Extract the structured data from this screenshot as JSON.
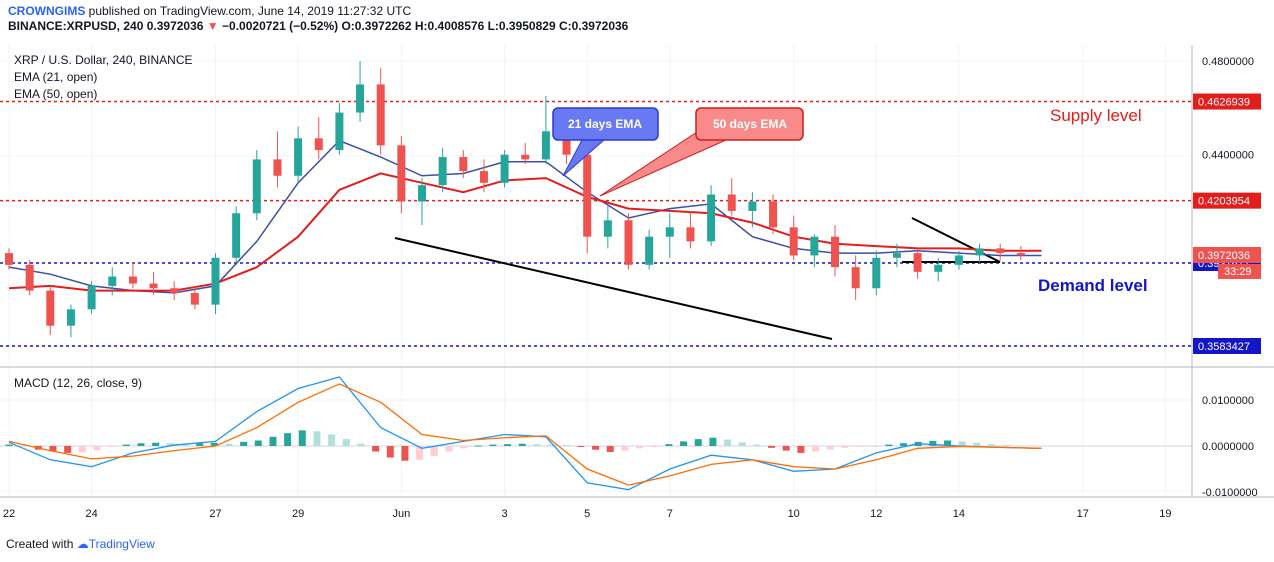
{
  "header": {
    "publisher": "CROWNGIMS",
    "published_text": "published on TradingView.com, June 14, 2019 11:27:32 UTC",
    "symbol_line": "BINANCE:XRPUSD, 240",
    "last": "0.3972036",
    "change": "−0.0020721 (−0.52%)",
    "ohlc": "O:0.3972262 H:0.4008576 L:0.3950829 C:0.3972036"
  },
  "legend": {
    "symbol": "XRP / U.S. Dollar, 240, BINANCE",
    "ema21": "EMA (21, open)",
    "ema50": "EMA (50, open)"
  },
  "macd_title": "MACD (12, 26, close, 9)",
  "footer": {
    "created": "Created with",
    "brand": "TradingView"
  },
  "colors": {
    "up": "#26a69a",
    "down": "#ef5350",
    "ema21": "#3b4fa8",
    "ema50": "#e31c1c",
    "supply": "#e31c1c",
    "demand": "#1515c8",
    "trendline": "#000000",
    "macd_line": "#2196f3",
    "signal_line": "#ff6d00"
  },
  "chart_data": [
    {
      "type": "candlestick",
      "y_axis": {
        "min": 0.35,
        "max": 0.485,
        "ticks": [
          "0.4800000",
          "0.4400000",
          "0.3972036",
          "0.3937677",
          "0.3583427"
        ]
      },
      "x_ticks": [
        "22",
        "24",
        "27",
        "29",
        "Jun",
        "3",
        "5",
        "7",
        "10",
        "12",
        "14",
        "17",
        "19"
      ],
      "levels": [
        {
          "name": "Supply level",
          "price": 0.4626939,
          "label": "0.4626939",
          "color": "#e31c1c"
        },
        {
          "name": "",
          "price": 0.4203954,
          "label": "0.4203954",
          "color": "#e31c1c"
        },
        {
          "name": "Demand level",
          "price": 0.3937677,
          "label": "0.3937677",
          "color": "#1515c8"
        },
        {
          "name": "",
          "price": 0.3583427,
          "label": "0.3583427",
          "color": "#1515c8"
        }
      ],
      "current_price": {
        "label": "0.3972036",
        "countdown": "33:29"
      },
      "annotations": [
        "21 days EMA",
        "50 days EMA",
        "Supply level",
        "Demand level"
      ],
      "series": [
        {
          "name": "EMA (21, open)",
          "x_days": [
            22,
            23,
            24,
            25,
            26,
            27,
            28,
            29,
            30,
            31,
            32,
            33,
            34,
            35,
            36,
            37,
            38,
            39,
            40,
            41,
            42,
            43,
            44,
            45,
            46,
            47
          ],
          "values": [
            0.392,
            0.389,
            0.384,
            0.382,
            0.381,
            0.384,
            0.403,
            0.428,
            0.446,
            0.439,
            0.431,
            0.432,
            0.437,
            0.437,
            0.424,
            0.413,
            0.417,
            0.419,
            0.405,
            0.4,
            0.398,
            0.398,
            0.399,
            0.398,
            0.397,
            0.397
          ]
        },
        {
          "name": "EMA (50, open)",
          "x_days": [
            22,
            23,
            24,
            25,
            26,
            27,
            28,
            29,
            30,
            31,
            32,
            33,
            34,
            35,
            36,
            37,
            38,
            39,
            40,
            41,
            42,
            43,
            44,
            45,
            46,
            47
          ],
          "values": [
            0.383,
            0.384,
            0.382,
            0.382,
            0.382,
            0.385,
            0.392,
            0.405,
            0.425,
            0.432,
            0.428,
            0.424,
            0.429,
            0.43,
            0.422,
            0.417,
            0.416,
            0.415,
            0.411,
            0.405,
            0.402,
            0.401,
            0.4,
            0.4,
            0.399,
            0.399
          ]
        }
      ],
      "candles": [
        {
          "d": 22.0,
          "o": 0.398,
          "h": 0.4,
          "l": 0.391,
          "c": 0.393
        },
        {
          "d": 22.5,
          "o": 0.393,
          "h": 0.395,
          "l": 0.38,
          "c": 0.382
        },
        {
          "d": 23.0,
          "o": 0.382,
          "h": 0.384,
          "l": 0.363,
          "c": 0.367
        },
        {
          "d": 23.5,
          "o": 0.367,
          "h": 0.376,
          "l": 0.362,
          "c": 0.374
        },
        {
          "d": 24.0,
          "o": 0.374,
          "h": 0.386,
          "l": 0.372,
          "c": 0.384
        },
        {
          "d": 24.5,
          "o": 0.384,
          "h": 0.392,
          "l": 0.38,
          "c": 0.388
        },
        {
          "d": 25.0,
          "o": 0.388,
          "h": 0.394,
          "l": 0.383,
          "c": 0.385
        },
        {
          "d": 25.5,
          "o": 0.385,
          "h": 0.39,
          "l": 0.38,
          "c": 0.383
        },
        {
          "d": 26.0,
          "o": 0.383,
          "h": 0.386,
          "l": 0.378,
          "c": 0.381
        },
        {
          "d": 26.5,
          "o": 0.381,
          "h": 0.384,
          "l": 0.374,
          "c": 0.376
        },
        {
          "d": 27.0,
          "o": 0.376,
          "h": 0.398,
          "l": 0.372,
          "c": 0.396
        },
        {
          "d": 27.5,
          "o": 0.396,
          "h": 0.418,
          "l": 0.394,
          "c": 0.415
        },
        {
          "d": 28.0,
          "o": 0.415,
          "h": 0.442,
          "l": 0.412,
          "c": 0.438
        },
        {
          "d": 28.5,
          "o": 0.438,
          "h": 0.45,
          "l": 0.426,
          "c": 0.431
        },
        {
          "d": 29.0,
          "o": 0.431,
          "h": 0.452,
          "l": 0.428,
          "c": 0.447
        },
        {
          "d": 29.5,
          "o": 0.447,
          "h": 0.456,
          "l": 0.438,
          "c": 0.442
        },
        {
          "d": 30.0,
          "o": 0.442,
          "h": 0.462,
          "l": 0.44,
          "c": 0.458
        },
        {
          "d": 30.5,
          "o": 0.458,
          "h": 0.48,
          "l": 0.454,
          "c": 0.47
        },
        {
          "d": 31.0,
          "o": 0.47,
          "h": 0.477,
          "l": 0.44,
          "c": 0.444
        },
        {
          "d": 31.5,
          "o": 0.444,
          "h": 0.448,
          "l": 0.415,
          "c": 0.42
        },
        {
          "d": 32.0,
          "o": 0.42,
          "h": 0.43,
          "l": 0.41,
          "c": 0.427
        },
        {
          "d": 32.5,
          "o": 0.427,
          "h": 0.443,
          "l": 0.424,
          "c": 0.439
        },
        {
          "d": 33.0,
          "o": 0.439,
          "h": 0.442,
          "l": 0.43,
          "c": 0.433
        },
        {
          "d": 33.5,
          "o": 0.433,
          "h": 0.438,
          "l": 0.424,
          "c": 0.428
        },
        {
          "d": 34.0,
          "o": 0.428,
          "h": 0.442,
          "l": 0.426,
          "c": 0.44
        },
        {
          "d": 34.5,
          "o": 0.44,
          "h": 0.445,
          "l": 0.436,
          "c": 0.438
        },
        {
          "d": 35.0,
          "o": 0.438,
          "h": 0.465,
          "l": 0.436,
          "c": 0.45
        },
        {
          "d": 35.5,
          "o": 0.45,
          "h": 0.452,
          "l": 0.436,
          "c": 0.44
        },
        {
          "d": 36.0,
          "o": 0.44,
          "h": 0.442,
          "l": 0.398,
          "c": 0.405
        },
        {
          "d": 36.5,
          "o": 0.405,
          "h": 0.418,
          "l": 0.4,
          "c": 0.412
        },
        {
          "d": 37.0,
          "o": 0.412,
          "h": 0.415,
          "l": 0.391,
          "c": 0.393
        },
        {
          "d": 37.5,
          "o": 0.393,
          "h": 0.408,
          "l": 0.391,
          "c": 0.405
        },
        {
          "d": 38.0,
          "o": 0.405,
          "h": 0.415,
          "l": 0.396,
          "c": 0.409
        },
        {
          "d": 38.5,
          "o": 0.409,
          "h": 0.416,
          "l": 0.4,
          "c": 0.403
        },
        {
          "d": 39.0,
          "o": 0.403,
          "h": 0.427,
          "l": 0.401,
          "c": 0.423
        },
        {
          "d": 39.5,
          "o": 0.423,
          "h": 0.43,
          "l": 0.414,
          "c": 0.416
        },
        {
          "d": 40.0,
          "o": 0.416,
          "h": 0.424,
          "l": 0.409,
          "c": 0.42
        },
        {
          "d": 40.5,
          "o": 0.42,
          "h": 0.423,
          "l": 0.406,
          "c": 0.409
        },
        {
          "d": 41.0,
          "o": 0.409,
          "h": 0.414,
          "l": 0.395,
          "c": 0.397
        },
        {
          "d": 41.5,
          "o": 0.397,
          "h": 0.406,
          "l": 0.392,
          "c": 0.405
        },
        {
          "d": 42.0,
          "o": 0.405,
          "h": 0.41,
          "l": 0.388,
          "c": 0.392
        },
        {
          "d": 42.5,
          "o": 0.392,
          "h": 0.397,
          "l": 0.378,
          "c": 0.383
        },
        {
          "d": 43.0,
          "o": 0.383,
          "h": 0.399,
          "l": 0.38,
          "c": 0.396
        },
        {
          "d": 43.5,
          "o": 0.396,
          "h": 0.402,
          "l": 0.392,
          "c": 0.398
        },
        {
          "d": 44.0,
          "o": 0.398,
          "h": 0.4,
          "l": 0.387,
          "c": 0.39
        },
        {
          "d": 44.5,
          "o": 0.39,
          "h": 0.396,
          "l": 0.386,
          "c": 0.393
        },
        {
          "d": 45.0,
          "o": 0.393,
          "h": 0.399,
          "l": 0.391,
          "c": 0.397
        },
        {
          "d": 45.5,
          "o": 0.397,
          "h": 0.402,
          "l": 0.394,
          "c": 0.4
        },
        {
          "d": 46.0,
          "o": 0.4,
          "h": 0.402,
          "l": 0.395,
          "c": 0.398
        },
        {
          "d": 46.5,
          "o": 0.398,
          "h": 0.401,
          "l": 0.395,
          "c": 0.397
        }
      ]
    },
    {
      "type": "macd",
      "title": "MACD (12, 26, close, 9)",
      "y_axis": {
        "min": -0.0115,
        "max": 0.0155,
        "ticks": [
          "0.0100000",
          "0.0000000",
          "-0.0100000"
        ]
      },
      "series": [
        {
          "name": "MACD",
          "x_days": [
            22,
            23,
            24,
            25,
            26,
            27,
            28,
            29,
            30,
            31,
            32,
            33,
            34,
            35,
            36,
            37,
            38,
            39,
            40,
            41,
            42,
            43,
            44,
            45,
            46,
            47
          ],
          "values": [
            0.0008,
            -0.003,
            -0.0045,
            -0.0015,
            0.0002,
            0.001,
            0.0075,
            0.0125,
            0.015,
            0.004,
            -0.0005,
            0.001,
            0.0025,
            0.002,
            -0.008,
            -0.0095,
            -0.005,
            -0.002,
            -0.003,
            -0.0055,
            -0.005,
            -0.0015,
            0.0005,
            0.0,
            -0.0003,
            -0.0005
          ]
        },
        {
          "name": "Signal",
          "x_days": [
            22,
            23,
            24,
            25,
            26,
            27,
            28,
            29,
            30,
            31,
            32,
            33,
            34,
            35,
            36,
            37,
            38,
            39,
            40,
            41,
            42,
            43,
            44,
            45,
            46,
            47
          ],
          "values": [
            0.001,
            -0.001,
            -0.0028,
            -0.0022,
            -0.001,
            0.0,
            0.004,
            0.0095,
            0.0135,
            0.0095,
            0.0025,
            0.0012,
            0.0018,
            0.0022,
            -0.005,
            -0.0085,
            -0.0065,
            -0.004,
            -0.003,
            -0.0045,
            -0.005,
            -0.003,
            -0.0005,
            -0.0001,
            -0.0003,
            -0.0005
          ]
        }
      ],
      "histogram": [
        0.0003,
        0.0001,
        -0.0008,
        -0.0012,
        -0.0015,
        -0.0014,
        -0.0009,
        -0.0002,
        0.0003,
        0.0006,
        0.0007,
        0.0006,
        0.0005,
        0.0006,
        0.0007,
        0.0005,
        0.0009,
        0.0012,
        0.002,
        0.0028,
        0.0034,
        0.0032,
        0.0025,
        0.0015,
        0.0005,
        -0.0012,
        -0.0025,
        -0.0032,
        -0.003,
        -0.0022,
        -0.0012,
        -0.0005,
        0.0001,
        0.0003,
        0.0004,
        0.0005,
        0.0004,
        0.0003,
        0.0002,
        -0.0002,
        -0.0008,
        -0.0013,
        -0.001,
        -0.0005,
        -0.0002,
        0.0004,
        0.001,
        0.0015,
        0.0018,
        0.0014,
        0.0008,
        0.0003,
        -0.0004,
        -0.001,
        -0.0015,
        -0.0012,
        -0.0008,
        -0.0004,
        -0.0002,
        -0.0001,
        0.0003,
        0.0006,
        0.0009,
        0.0011,
        0.0012,
        0.001,
        0.0007,
        0.0004,
        0.0002,
        0.0001
      ]
    }
  ]
}
